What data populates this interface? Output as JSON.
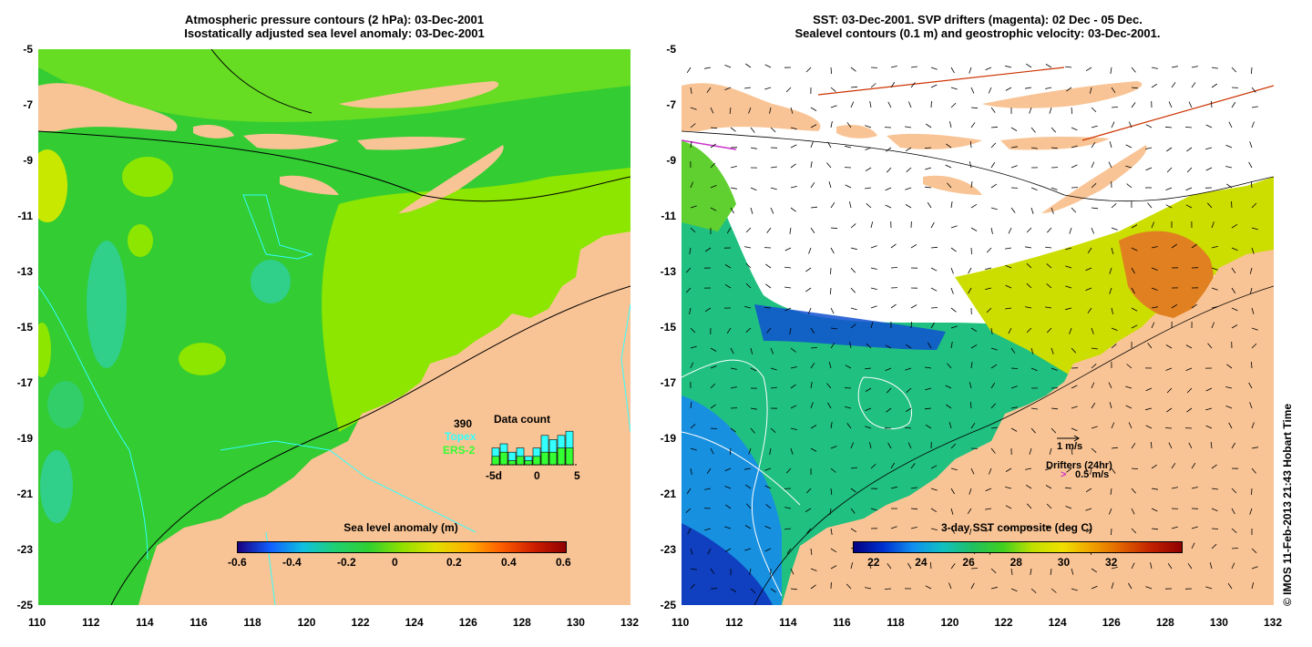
{
  "left_panel": {
    "title_line1": "Atmospheric pressure contours (2 hPa): 03-Dec-2001",
    "title_line2": "Isostatically adjusted sea level anomaly: 03-Dec-2001",
    "x_ticks": [
      "110",
      "112",
      "114",
      "116",
      "118",
      "120",
      "122",
      "124",
      "126",
      "128",
      "130",
      "132"
    ],
    "y_ticks": [
      "-5",
      "-7",
      "-9",
      "-11",
      "-13",
      "-15",
      "-17",
      "-19",
      "-21",
      "-23",
      "-25"
    ],
    "colorbar_title": "Sea level anomaly (m)",
    "colorbar_ticks": [
      "-0.6",
      "-0.4",
      "-0.2",
      "0",
      "0.2",
      "0.4",
      "0.6"
    ],
    "data_count": {
      "total": "390",
      "title": "Data count",
      "sat1": "Topex",
      "sat2": "ERS-2",
      "x_labels": [
        "-5d",
        "0",
        "5"
      ],
      "topex": [
        4,
        5,
        3,
        4,
        2,
        4,
        7,
        6,
        7,
        8
      ],
      "ers2": [
        2,
        3,
        1,
        2,
        1,
        2,
        3,
        3,
        4,
        4
      ]
    }
  },
  "right_panel": {
    "title_line1": "SST: 03-Dec-2001. SVP drifters (magenta): 02 Dec - 05 Dec.",
    "title_line2": "Sealevel contours (0.1 m) and geostrophic velocity: 03-Dec-2001.",
    "x_ticks": [
      "110",
      "112",
      "114",
      "116",
      "118",
      "120",
      "122",
      "124",
      "126",
      "128",
      "130",
      "132"
    ],
    "y_ticks": [
      "-5",
      "-7",
      "-9",
      "-11",
      "-13",
      "-15",
      "-17",
      "-19",
      "-21",
      "-23",
      "-25"
    ],
    "colorbar_title": "3-day SST composite (deg C)",
    "colorbar_ticks": [
      "22",
      "24",
      "26",
      "28",
      "30",
      "32"
    ],
    "legend_velocity": "1 m/s",
    "legend_drifters": "Drifters (24hr)",
    "legend_drifter_speed": "0.5 m/s",
    "legend_arrow_glyph": ">"
  },
  "credit": "© IMOS 11-Feb-2013 21:43 Hobart Time",
  "colors": {
    "land": "#f9c495",
    "ocean_mid": "#33cc33",
    "ocean_light": "#8ce600",
    "ocean_cyan": "#30d0a0",
    "cloud": "#ffffff"
  }
}
